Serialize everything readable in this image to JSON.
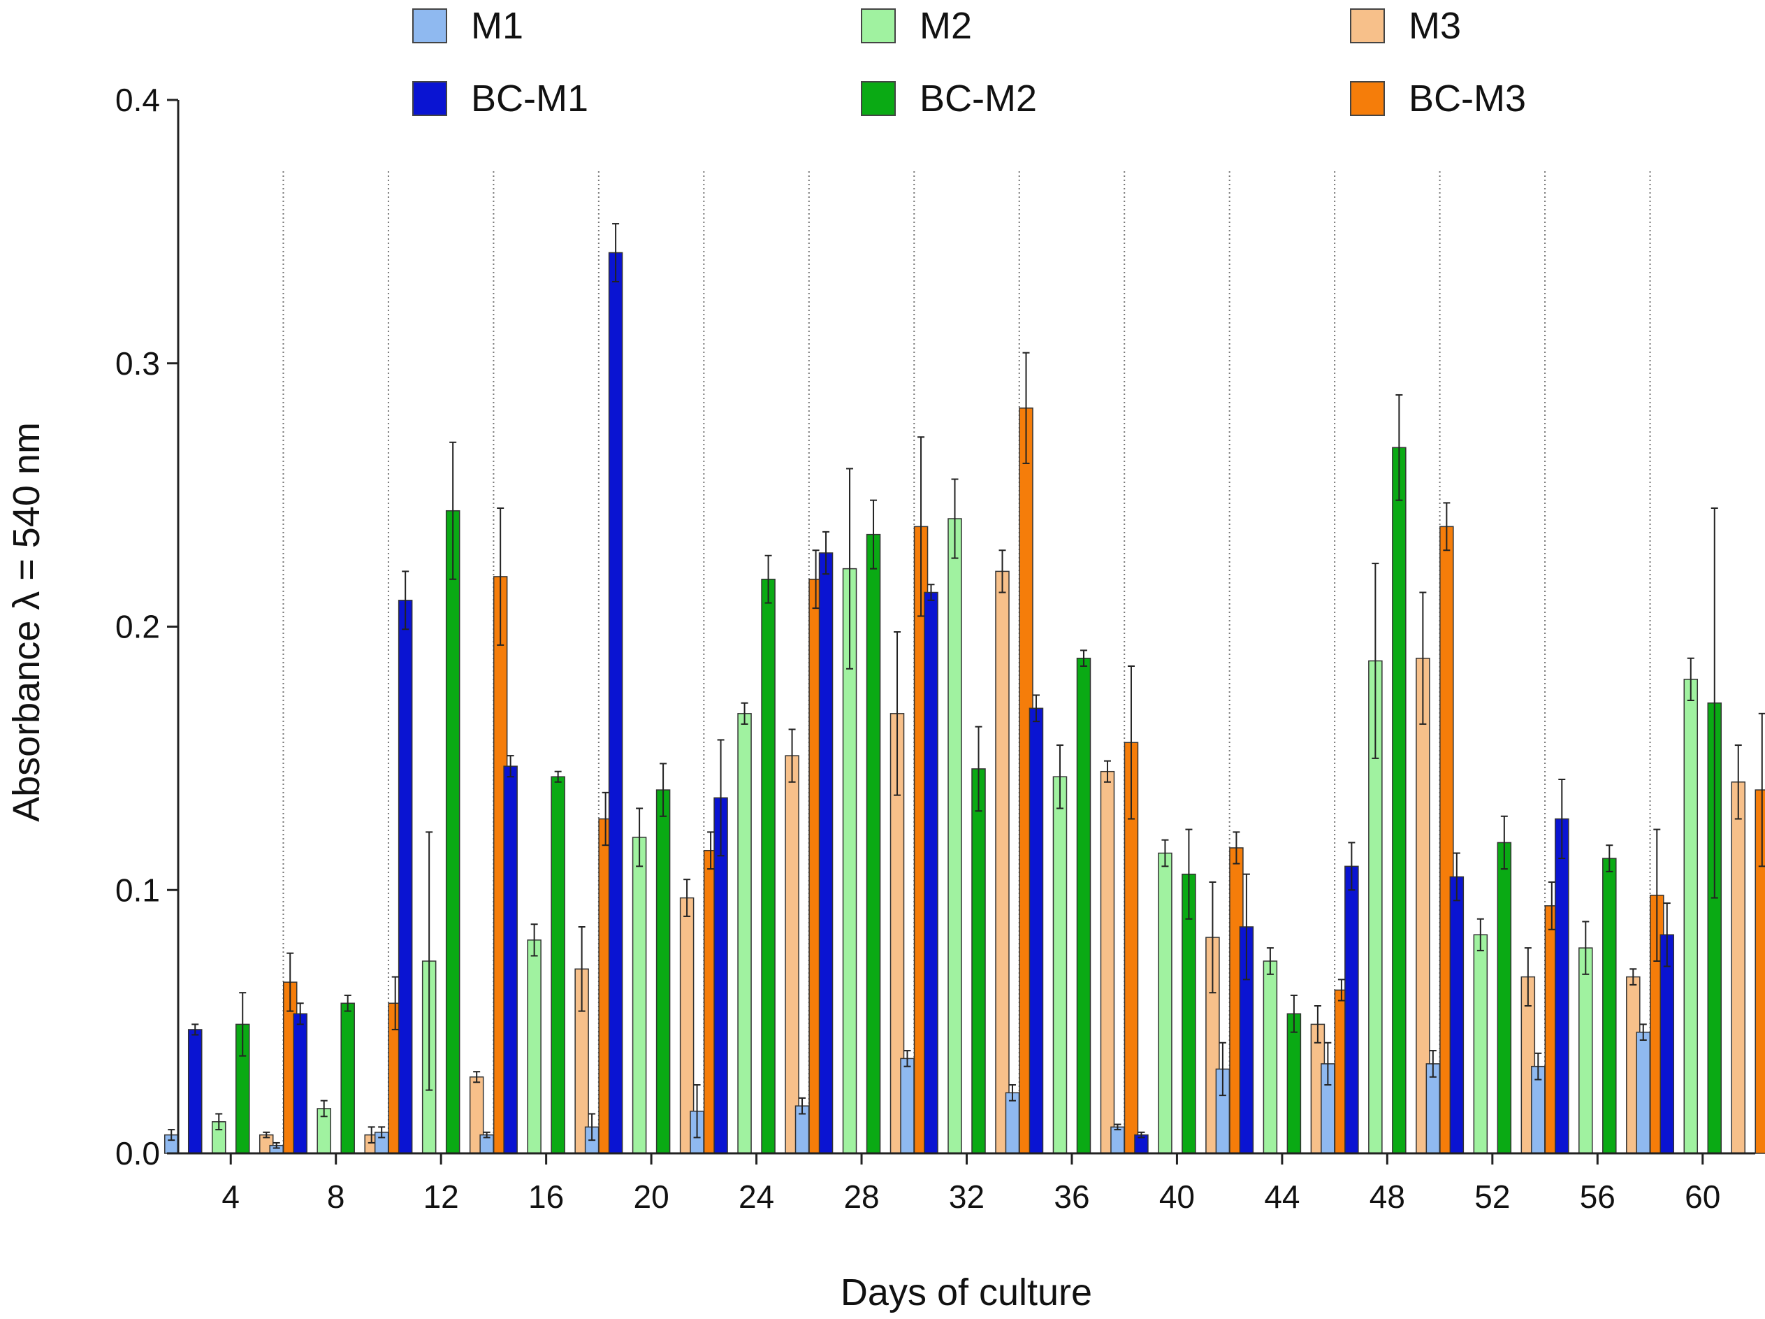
{
  "chart_data": {
    "type": "bar",
    "xlabel": "Days of culture",
    "ylabel": "Absorbance λ = 540 nm",
    "ylim": [
      0,
      0.4
    ],
    "yticks": [
      "0.0",
      "0.1",
      "0.2",
      "0.3",
      "0.4"
    ],
    "categories": [
      "4",
      "8",
      "12",
      "16",
      "20",
      "24",
      "28",
      "32",
      "36",
      "40",
      "44",
      "48",
      "52",
      "56",
      "60"
    ],
    "grid": "dotted vertical separators between groups",
    "legend_placement": "top",
    "error_bars": true,
    "series": [
      {
        "name": "M1",
        "color": "#8fb9f0",
        "values": [
          0.007,
          0.003,
          0.008,
          0.007,
          0.01,
          0.016,
          0.018,
          0.036,
          0.023,
          0.01,
          0.032,
          0.034,
          0.034,
          0.033,
          0.046
        ],
        "errors": [
          0.002,
          0.001,
          0.002,
          0.001,
          0.005,
          0.01,
          0.003,
          0.003,
          0.003,
          0.001,
          0.01,
          0.008,
          0.005,
          0.005,
          0.003
        ]
      },
      {
        "name": "BC-M1",
        "color": "#0a14d2",
        "values": [
          0.047,
          0.053,
          0.21,
          0.147,
          0.342,
          0.135,
          0.228,
          0.213,
          0.169,
          0.007,
          0.086,
          0.109,
          0.105,
          0.127,
          0.083
        ],
        "errors": [
          0.002,
          0.004,
          0.011,
          0.004,
          0.011,
          0.022,
          0.008,
          0.003,
          0.005,
          0.001,
          0.02,
          0.009,
          0.009,
          0.015,
          0.012
        ]
      },
      {
        "name": "M2",
        "color": "#a0f2a0",
        "values": [
          0.012,
          0.017,
          0.073,
          0.081,
          0.12,
          0.167,
          0.222,
          0.241,
          0.143,
          0.114,
          0.073,
          0.187,
          0.083,
          0.078,
          0.18
        ],
        "errors": [
          0.003,
          0.003,
          0.049,
          0.006,
          0.011,
          0.004,
          0.038,
          0.015,
          0.012,
          0.005,
          0.005,
          0.037,
          0.006,
          0.01,
          0.008
        ]
      },
      {
        "name": "BC-M2",
        "color": "#0aaa14",
        "values": [
          0.049,
          0.057,
          0.244,
          0.143,
          0.138,
          0.218,
          0.235,
          0.146,
          0.188,
          0.106,
          0.053,
          0.268,
          0.118,
          0.112,
          0.171
        ],
        "errors": [
          0.012,
          0.003,
          0.026,
          0.002,
          0.01,
          0.009,
          0.013,
          0.016,
          0.003,
          0.017,
          0.007,
          0.02,
          0.01,
          0.005,
          0.074
        ]
      },
      {
        "name": "M3",
        "color": "#f7c08a",
        "values": [
          0.007,
          0.007,
          0.029,
          0.07,
          0.097,
          0.151,
          0.167,
          0.221,
          0.145,
          0.082,
          0.049,
          0.188,
          0.067,
          0.067,
          0.141
        ],
        "errors": [
          0.001,
          0.003,
          0.002,
          0.016,
          0.007,
          0.01,
          0.031,
          0.008,
          0.004,
          0.021,
          0.007,
          0.025,
          0.011,
          0.003,
          0.014
        ]
      },
      {
        "name": "BC-M3",
        "color": "#f57d0a",
        "values": [
          0.065,
          0.057,
          0.219,
          0.127,
          0.115,
          0.218,
          0.238,
          0.283,
          0.156,
          0.116,
          0.062,
          0.238,
          0.094,
          0.098,
          0.138
        ],
        "errors": [
          0.011,
          0.01,
          0.026,
          0.01,
          0.007,
          0.011,
          0.034,
          0.021,
          0.029,
          0.006,
          0.004,
          0.009,
          0.009,
          0.025,
          0.029
        ]
      }
    ]
  },
  "legend": [
    {
      "label": "M1",
      "color": "#8fb9f0"
    },
    {
      "label": "M2",
      "color": "#a0f2a0"
    },
    {
      "label": "M3",
      "color": "#f7c08a"
    },
    {
      "label": "BC-M1",
      "color": "#0a14d2"
    },
    {
      "label": "BC-M2",
      "color": "#0aaa14"
    },
    {
      "label": "BC-M3",
      "color": "#f57d0a"
    }
  ]
}
